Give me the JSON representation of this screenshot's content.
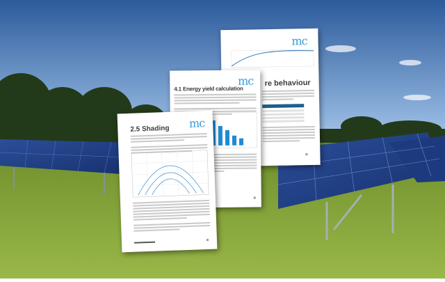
{
  "colors": {
    "sky_top": "#2c5b9b",
    "sky_horizon": "#b9d1ea",
    "grass": "#7f9e32",
    "panel": "#1f3f86",
    "accent": "#3a9ad9",
    "table_header": "#1d5f8a"
  },
  "documents": [
    {
      "title": "re behaviour",
      "logo": "mc"
    },
    {
      "title": "4.1 Energy yield calculation",
      "logo": "mc"
    },
    {
      "title": "2.5 Shading",
      "logo": "mc"
    }
  ]
}
